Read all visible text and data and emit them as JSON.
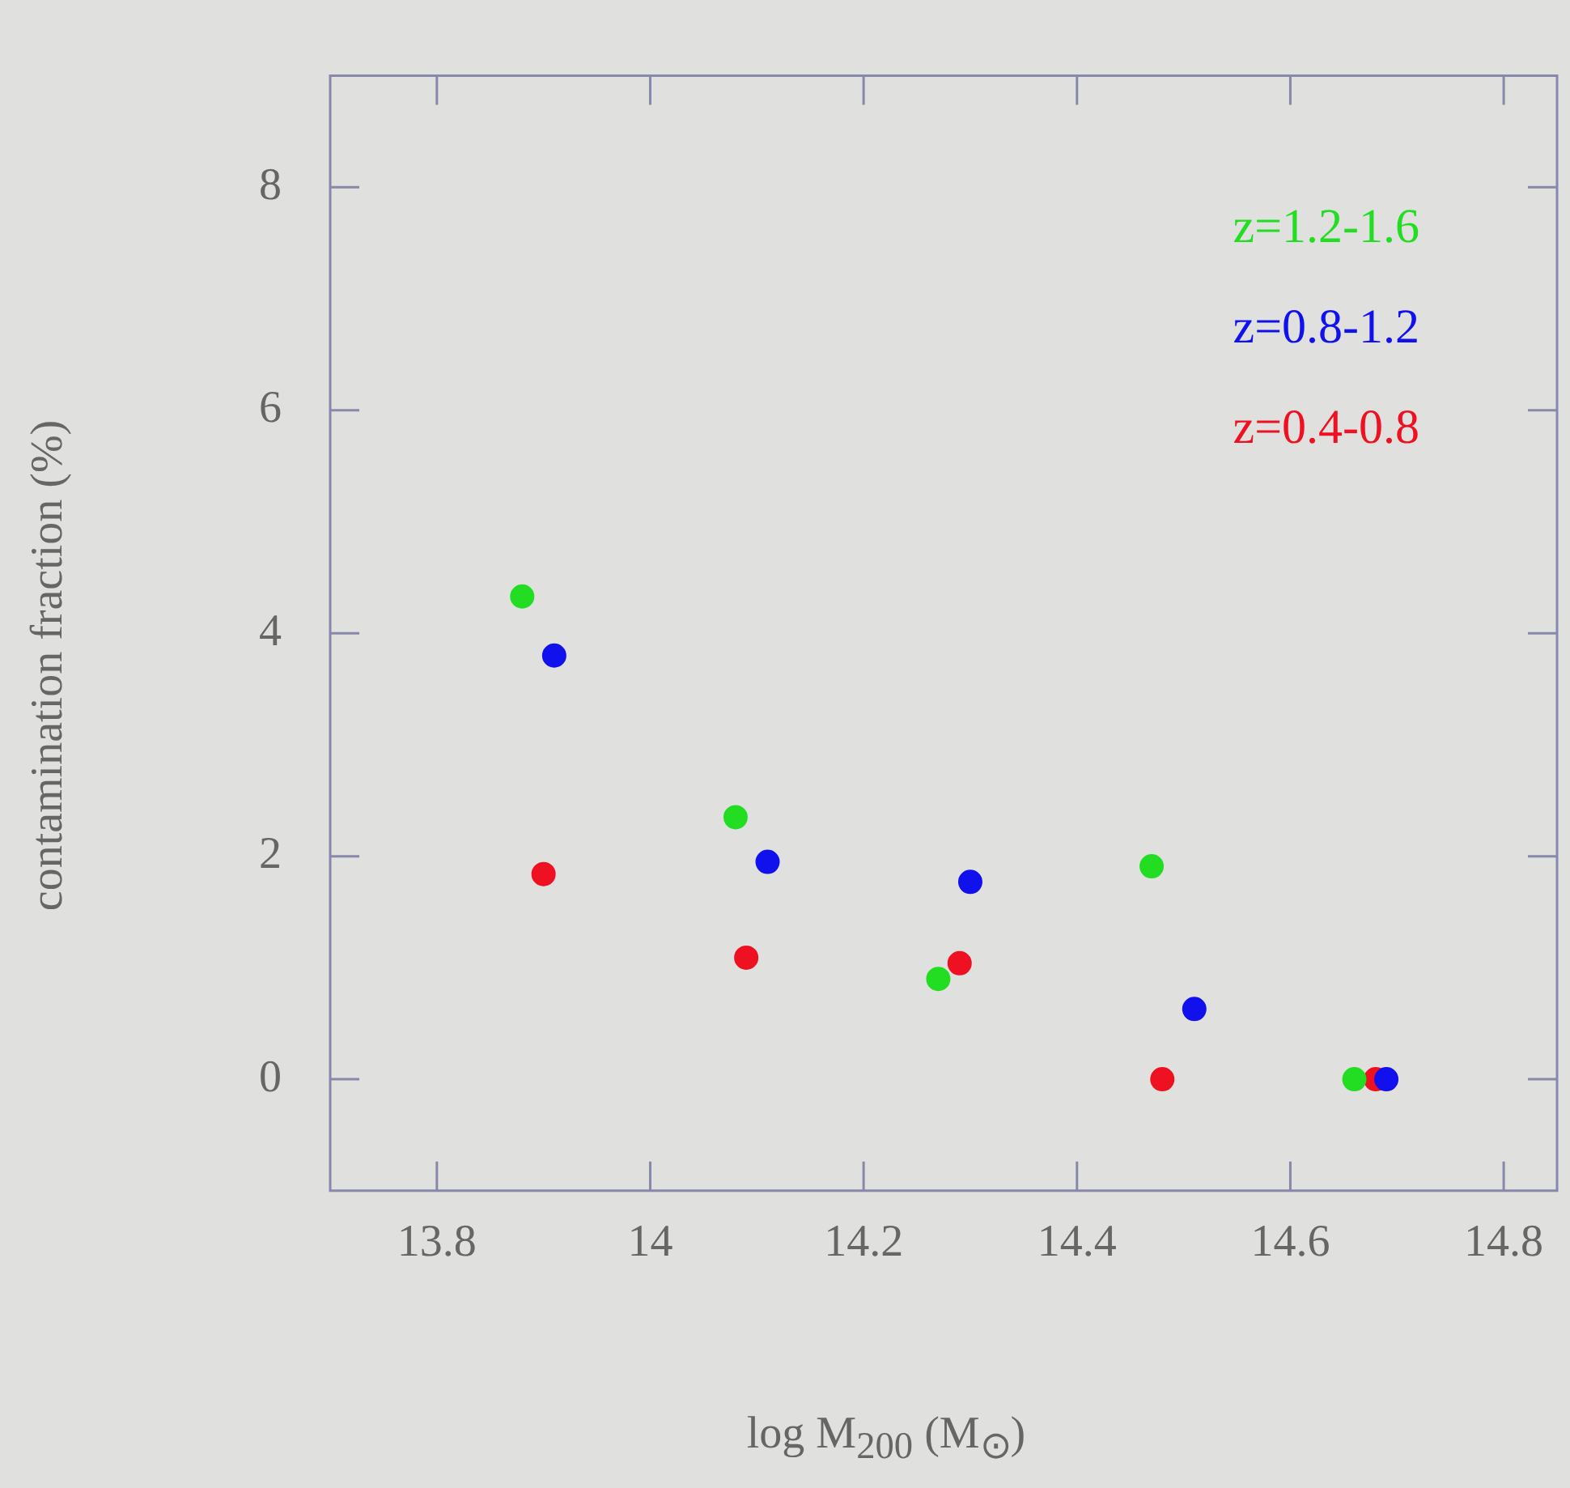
{
  "chart_data": {
    "type": "scatter",
    "xlabel": "log M$_{200}$ (M$_{⊙}$)",
    "ylabel": "contamination fraction (%)",
    "xlim": [
      13.7,
      14.85
    ],
    "xticks": [
      13.8,
      14,
      14.2,
      14.4,
      14.6,
      14.8
    ],
    "ylim": [
      -1,
      9
    ],
    "yticks": [
      0,
      2,
      4,
      6,
      8
    ],
    "grid": false,
    "legend": "top right",
    "marker": "circle",
    "series": [
      {
        "name": "z=1.2-1.6",
        "color": "#22dd22",
        "x": [
          13.88,
          14.08,
          14.27,
          14.47,
          14.66
        ],
        "values": [
          4.33,
          2.35,
          0.9,
          1.91,
          0
        ]
      },
      {
        "name": "z=0.8-1.2",
        "color": "#1111ee",
        "x": [
          13.91,
          14.11,
          14.3,
          14.51,
          14.69
        ],
        "values": [
          3.8,
          1.95,
          1.77,
          0.63,
          0
        ]
      },
      {
        "name": "z=0.4-0.8",
        "color": "#ee1122",
        "x": [
          13.9,
          14.09,
          14.29,
          14.48,
          14.68
        ],
        "values": [
          1.84,
          1.09,
          1.04,
          0,
          0
        ]
      }
    ]
  }
}
